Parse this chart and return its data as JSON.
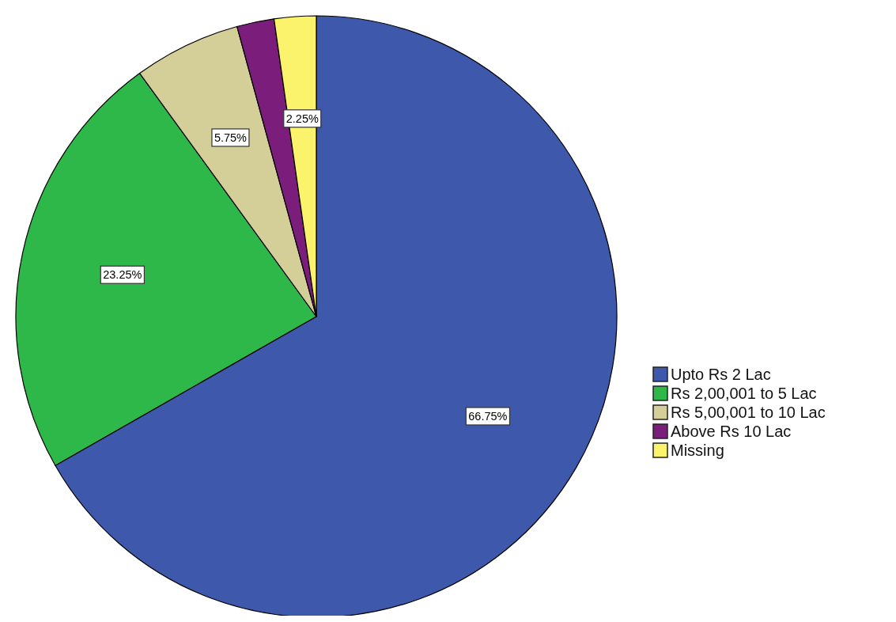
{
  "chart_data": {
    "type": "pie",
    "categories": [
      "Upto Rs 2 Lac",
      "Rs 2,00,001 to 5 Lac",
      "Rs 5,00,001 to 10 Lac",
      "Above Rs 10 Lac",
      "Missing"
    ],
    "values": [
      66.75,
      23.25,
      5.75,
      2,
      2.25
    ],
    "value_labels": [
      "66.75%",
      "23.25%",
      "5.75%",
      null,
      "2.25%"
    ],
    "colors": [
      "#3e58ac",
      "#2fb84a",
      "#d4cf98",
      "#7b1e7b",
      "#fbf36b"
    ],
    "legend": "right"
  }
}
